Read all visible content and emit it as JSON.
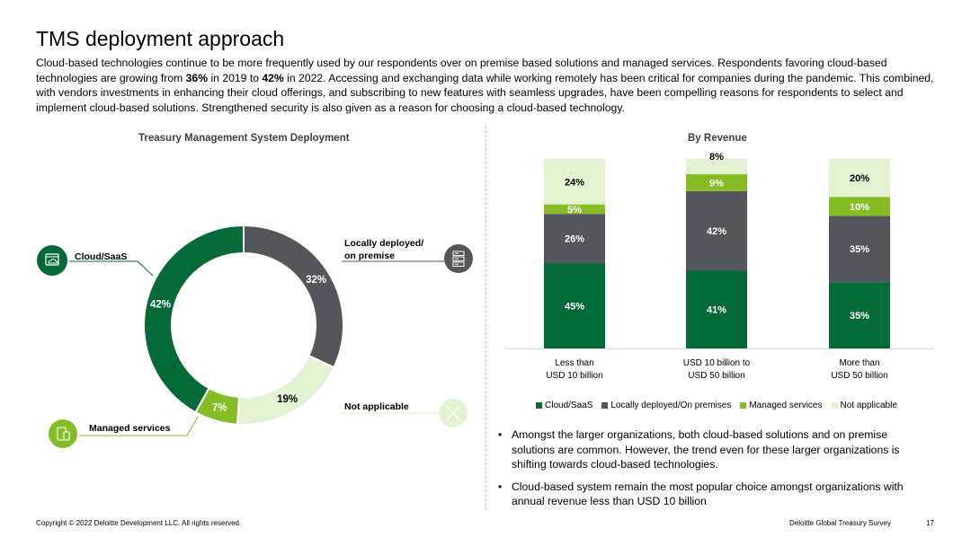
{
  "page": {
    "title": "TMS deployment approach",
    "intro": {
      "p1": "Cloud-based technologies continue to be more frequently used by our respondents over on premise based solutions and managed services. Respondents favoring cloud-based technologies are growing from ",
      "b1": "36%",
      "p2": " in 2019 to ",
      "b2": "42%",
      "p3": " in 2022. Accessing and exchanging data while working remotely has been critical for companies during the pandemic. This combined, with vendors investments in enhancing their cloud offerings, and subscribing to new features with seamless upgrades, have been compelling reasons for respondents to select and implement cloud-based solutions. Strengthened security is also given as a reason for choosing a cloud-based technology."
    },
    "bullets": [
      "Amongst the larger organizations, both cloud-based solutions and on premise solutions are common. However, the trend even for these larger organizations is shifting towards cloud-based technologies.",
      "Cloud-based system remain the most popular choice amongst organizations with annual revenue less than USD 10 billion"
    ],
    "footer": {
      "copyright": "Copyright © 2022 Deloitte Development LLC. All rights reserved.",
      "survey": "Deloitte Global Treasury Survey",
      "page_number": "17"
    },
    "callouts": {
      "cloud": "Cloud/SaaS",
      "local_line1": "Locally deployed/",
      "local_line2": "on premise",
      "not_applicable": "Not applicable",
      "managed": "Managed services"
    },
    "icons": {
      "cloud": "cloud-window-icon",
      "local": "server-icon",
      "not_applicable": "cross-icon",
      "managed": "device-icon"
    }
  },
  "chart_data": [
    {
      "type": "pie",
      "variant": "donut",
      "title": "Treasury Management System Deployment",
      "categories": [
        "Locally deployed/on premise",
        "Not applicable",
        "Managed services",
        "Cloud/SaaS"
      ],
      "values": [
        32,
        19,
        7,
        42
      ],
      "labels": [
        "32%",
        "19%",
        "7%",
        "42%"
      ],
      "colors": [
        "#53565a",
        "#e3f2d0",
        "#86bc25",
        "#046a38"
      ]
    },
    {
      "type": "bar",
      "stacked": true,
      "title": "By Revenue",
      "categories": [
        [
          "Less than",
          "USD 10 billion"
        ],
        [
          "USD 10 billion to",
          "USD 50 billion"
        ],
        [
          "More than",
          "USD 50 billion"
        ]
      ],
      "series": [
        {
          "name": "Cloud/SaaS",
          "values": [
            45,
            41,
            35
          ],
          "color": "#046a38"
        },
        {
          "name": "Locally deployed/On premises",
          "values": [
            26,
            42,
            35
          ],
          "color": "#53565a"
        },
        {
          "name": "Managed services",
          "values": [
            5,
            9,
            10
          ],
          "color": "#86bc25"
        },
        {
          "name": "Not applicable",
          "values": [
            24,
            8,
            20
          ],
          "color": "#e3f2d0"
        }
      ],
      "ylim": [
        0,
        100
      ],
      "legend": "bottom"
    }
  ]
}
